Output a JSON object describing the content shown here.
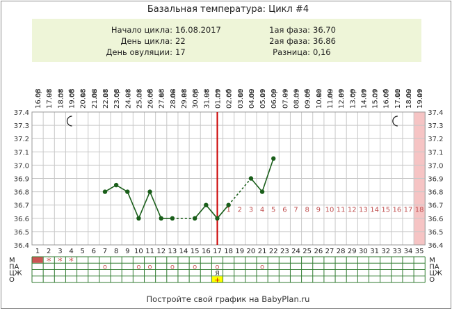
{
  "title": "Базальная температура: Цикл #4",
  "info": {
    "left_labels": [
      "Начало цикла:",
      "День цикла:",
      "День овуляции:"
    ],
    "left_values": [
      "16.08.2017",
      "22",
      "17"
    ],
    "right_labels": [
      "1ая фаза:",
      "2ая фаза:",
      "Разница:"
    ],
    "right_values": [
      "36.70",
      "36.86",
      "0,16"
    ]
  },
  "footer": "Постройте свой график на BabyPlan.ru",
  "colors": {
    "info_bg": "#eef5d8",
    "line": "#1a5e1a",
    "ovulation_line": "#cc0000",
    "post_number": "#c05050",
    "shade": "#f6c4c4",
    "grid": "#c8c8c8",
    "row_grid": "#2f7a2f",
    "marker_red": "#cc5555",
    "marker_yellow": "#ffff00"
  },
  "icons": {
    "night": "moon-icon"
  },
  "chart_data": {
    "type": "line",
    "title": "Базальная температура: Цикл #4",
    "x_days": [
      1,
      2,
      3,
      4,
      5,
      6,
      7,
      8,
      9,
      10,
      11,
      12,
      13,
      14,
      15,
      16,
      17,
      18,
      19,
      20,
      21,
      22,
      23,
      24,
      25,
      26,
      27,
      28,
      29,
      30,
      31,
      32,
      33,
      34,
      35
    ],
    "dates": [
      "16.08",
      "17.08",
      "18.08",
      "19.08",
      "20.08",
      "21.08",
      "22.08",
      "23.08",
      "24.08",
      "25.08",
      "26.08",
      "27.08",
      "28.08",
      "29.08",
      "30.08",
      "31.08",
      "01.09",
      "02.09",
      "03.09",
      "04.09",
      "05.09",
      "06.09",
      "07.09",
      "08.09",
      "09.09",
      "10.09",
      "11.09",
      "12.09",
      "13.09",
      "14.09",
      "15.09",
      "16.09",
      "17.09",
      "18.09",
      "19.09"
    ],
    "weekdays": [
      "ср",
      "чт",
      "пт",
      "сб",
      "вс",
      "пн",
      "вт",
      "ср",
      "чт",
      "пт",
      "сб",
      "вс",
      "пн",
      "вт",
      "ср",
      "чт",
      "пт",
      "сб",
      "вс",
      "пн",
      "вт",
      "ср",
      "чт",
      "пт",
      "сб",
      "вс",
      "пн",
      "вт",
      "ср",
      "чт",
      "пт",
      "сб",
      "вс",
      "пн",
      "вт"
    ],
    "ylim": [
      36.4,
      37.4
    ],
    "y_ticks": [
      "37.4",
      "37.3",
      "37.2",
      "37.1",
      "37.0",
      "36.9",
      "36.8",
      "36.7",
      "36.6",
      "36.5",
      "36.4"
    ],
    "series": [
      {
        "points": [
          {
            "day": 7,
            "temp": 36.8
          },
          {
            "day": 8,
            "temp": 36.85
          },
          {
            "day": 9,
            "temp": 36.8
          },
          {
            "day": 10,
            "temp": 36.6
          },
          {
            "day": 11,
            "temp": 36.8
          },
          {
            "day": 12,
            "temp": 36.6
          },
          {
            "day": 13,
            "temp": 36.6
          },
          {
            "day": 15,
            "temp": 36.6
          },
          {
            "day": 16,
            "temp": 36.7
          },
          {
            "day": 17,
            "temp": 36.6
          },
          {
            "day": 18,
            "temp": 36.7
          },
          {
            "day": 20,
            "temp": 36.9
          },
          {
            "day": 21,
            "temp": 36.8
          },
          {
            "day": 22,
            "temp": 37.05
          }
        ]
      }
    ],
    "ovulation_day": 17,
    "post_ovulation_numbers": [
      "1",
      "2",
      "3",
      "4",
      "5",
      "6",
      "7",
      "8",
      "9",
      "10",
      "11",
      "12",
      "13",
      "14",
      "15",
      "16",
      "17",
      "18"
    ],
    "post_ovulation_label_temp": 36.67,
    "night_marks_days": [
      4,
      33
    ],
    "shaded_day": 35
  },
  "rows": {
    "labels_left": [
      "М",
      "ПА",
      "ЦЖ",
      "О"
    ],
    "labels_right": [
      "М",
      "ПА",
      "ЦЖ",
      "О"
    ],
    "m_filled_days": [
      1
    ],
    "m_star_days": [
      2,
      3,
      4
    ],
    "m_star_symbol": "*",
    "pa_days": [
      7,
      10,
      11,
      13,
      15,
      17,
      21
    ],
    "pa_symbol": "о",
    "czh": [
      {
        "day": 17,
        "text": "Я"
      }
    ],
    "o_days": [
      17
    ],
    "o_symbol": "+"
  }
}
